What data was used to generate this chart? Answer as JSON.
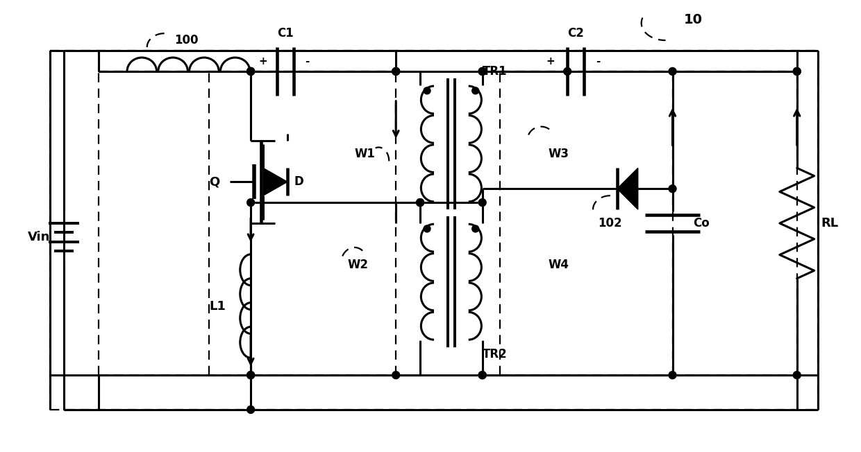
{
  "bg_color": "#ffffff",
  "lc": "#000000",
  "lw": 2.2,
  "dlw": 1.6,
  "fig_width": 12.4,
  "fig_height": 6.52,
  "xlim": [
    0,
    124
  ],
  "ylim": [
    0,
    65.2
  ]
}
